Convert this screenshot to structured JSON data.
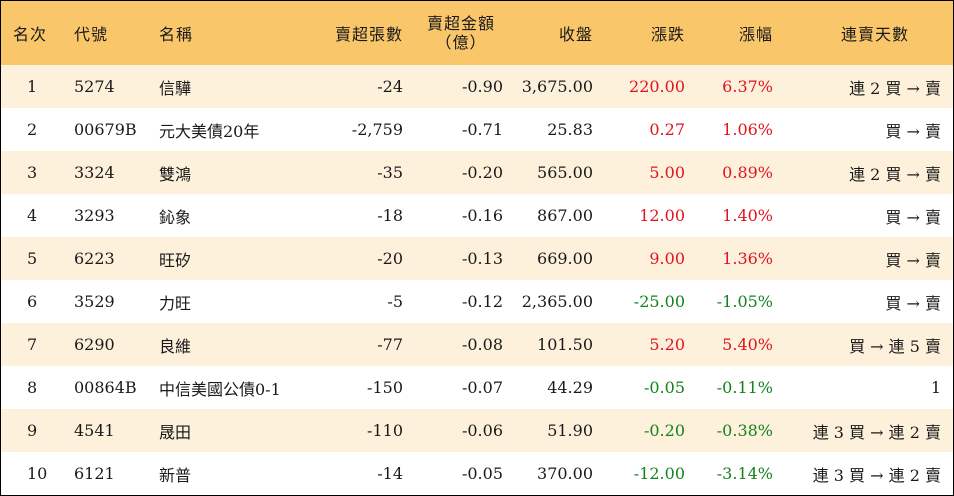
{
  "headers": {
    "rank": "名次",
    "code": "代號",
    "name": "名稱",
    "net_sell_lots": "賣超張數",
    "net_sell_amount_line1": "賣超金額",
    "net_sell_amount_line2": "（億）",
    "close": "收盤",
    "change": "漲跌",
    "change_pct": "漲幅",
    "streak": "連賣天數"
  },
  "colors": {
    "header_bg": "#f9c66a",
    "stripe_bg": "#fdf1dc",
    "up": "#e0141e",
    "down": "#14821e"
  },
  "rows": [
    {
      "rank": "1",
      "code": "5274",
      "name": "信驊",
      "lots": "-24",
      "amount": "-0.90",
      "close": "3,675.00",
      "change": "220.00",
      "pct": "6.37%",
      "dir": "up",
      "streak": "連 2 買 → 賣"
    },
    {
      "rank": "2",
      "code": "00679B",
      "name": "元大美債20年",
      "lots": "-2,759",
      "amount": "-0.71",
      "close": "25.83",
      "change": "0.27",
      "pct": "1.06%",
      "dir": "up",
      "streak": "買 → 賣"
    },
    {
      "rank": "3",
      "code": "3324",
      "name": "雙鴻",
      "lots": "-35",
      "amount": "-0.20",
      "close": "565.00",
      "change": "5.00",
      "pct": "0.89%",
      "dir": "up",
      "streak": "連 2 買 → 賣"
    },
    {
      "rank": "4",
      "code": "3293",
      "name": "鈊象",
      "lots": "-18",
      "amount": "-0.16",
      "close": "867.00",
      "change": "12.00",
      "pct": "1.40%",
      "dir": "up",
      "streak": "買 → 賣"
    },
    {
      "rank": "5",
      "code": "6223",
      "name": "旺矽",
      "lots": "-20",
      "amount": "-0.13",
      "close": "669.00",
      "change": "9.00",
      "pct": "1.36%",
      "dir": "up",
      "streak": "買 → 賣"
    },
    {
      "rank": "6",
      "code": "3529",
      "name": "力旺",
      "lots": "-5",
      "amount": "-0.12",
      "close": "2,365.00",
      "change": "-25.00",
      "pct": "-1.05%",
      "dir": "down",
      "streak": "買 → 賣"
    },
    {
      "rank": "7",
      "code": "6290",
      "name": "良維",
      "lots": "-77",
      "amount": "-0.08",
      "close": "101.50",
      "change": "5.20",
      "pct": "5.40%",
      "dir": "up",
      "streak": "買 → 連 5 賣"
    },
    {
      "rank": "8",
      "code": "00864B",
      "name": "中信美國公債0-1",
      "lots": "-150",
      "amount": "-0.07",
      "close": "44.29",
      "change": "-0.05",
      "pct": "-0.11%",
      "dir": "down",
      "streak": "1"
    },
    {
      "rank": "9",
      "code": "4541",
      "name": "晟田",
      "lots": "-110",
      "amount": "-0.06",
      "close": "51.90",
      "change": "-0.20",
      "pct": "-0.38%",
      "dir": "down",
      "streak": "連 3 買 → 連 2 賣"
    },
    {
      "rank": "10",
      "code": "6121",
      "name": "新普",
      "lots": "-14",
      "amount": "-0.05",
      "close": "370.00",
      "change": "-12.00",
      "pct": "-3.14%",
      "dir": "down",
      "streak": "連 3 買 → 連 2 賣"
    }
  ]
}
